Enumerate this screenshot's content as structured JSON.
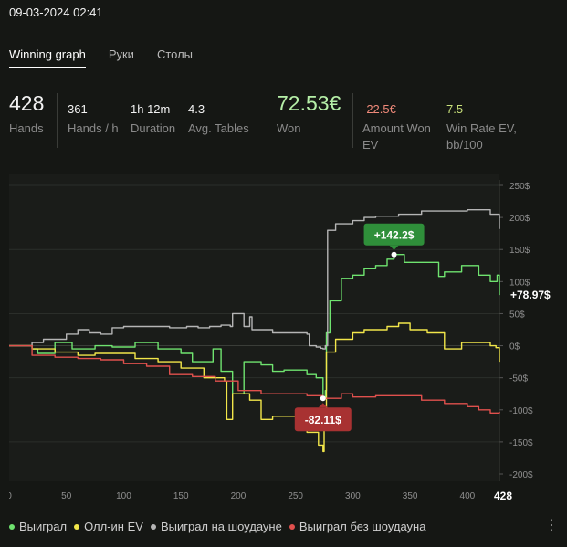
{
  "title": "09-03-2024 02:41",
  "tabs": [
    {
      "label": "Winning graph",
      "active": true
    },
    {
      "label": "Руки",
      "active": false
    },
    {
      "label": "Столы",
      "active": false
    }
  ],
  "stats": {
    "hands": {
      "value": "428",
      "label": "Hands"
    },
    "hands_per_hour": {
      "value": "361",
      "label": "Hands / h"
    },
    "duration": {
      "value": "1h 12m",
      "label": "Duration"
    },
    "avg_tables": {
      "value": "4.3",
      "label": "Avg. Tables"
    },
    "won": {
      "value": "72.53€",
      "label": "Won"
    },
    "amount_won_ev": {
      "value": "-22.5€",
      "label_line1": "Amount Won",
      "label_line2": "EV"
    },
    "win_rate_ev": {
      "value": "7.5",
      "label_line1": "Win Rate EV,",
      "label_line2": "bb/100"
    }
  },
  "colors": {
    "green": "#6fe36f",
    "yellow": "#f2e64a",
    "gray": "#b5b5b5",
    "red": "#e0504d",
    "won_value": "#b6f0a8",
    "negative": "#f08a7a",
    "positive_stat": "#c8e07a"
  },
  "chart_data": {
    "type": "line",
    "xlim": [
      0,
      428
    ],
    "ylim": [
      -200,
      250
    ],
    "x_ticks": [
      "0",
      "50",
      "100",
      "150",
      "200",
      "250",
      "300",
      "350",
      "400"
    ],
    "x_end_label": "428",
    "y_ticks": [
      "250$",
      "200$",
      "150$",
      "100$",
      "50$",
      "0$",
      "-50$",
      "-100$",
      "-150$",
      "-200$"
    ],
    "end_value_label": "+78.97$",
    "max_annotation": {
      "label": "+142.2$",
      "x": 336,
      "y": 142.2
    },
    "min_annotation": {
      "label": "-82.11$",
      "x": 274,
      "y": -82.11
    },
    "series": [
      {
        "name": "Выиграл",
        "color": "#6fe36f",
        "points": [
          [
            0,
            0
          ],
          [
            20,
            -5
          ],
          [
            25,
            -12
          ],
          [
            40,
            5
          ],
          [
            55,
            -5
          ],
          [
            75,
            0
          ],
          [
            90,
            -2
          ],
          [
            110,
            5
          ],
          [
            130,
            -5
          ],
          [
            150,
            -12
          ],
          [
            160,
            -25
          ],
          [
            178,
            -5
          ],
          [
            185,
            -40
          ],
          [
            190,
            -40
          ],
          [
            195,
            -75
          ],
          [
            205,
            -25
          ],
          [
            220,
            -30
          ],
          [
            230,
            -40
          ],
          [
            240,
            -38
          ],
          [
            260,
            -45
          ],
          [
            268,
            -50
          ],
          [
            274,
            -82.11
          ],
          [
            276,
            -70
          ],
          [
            277,
            20
          ],
          [
            280,
            70
          ],
          [
            290,
            105
          ],
          [
            300,
            110
          ],
          [
            310,
            120
          ],
          [
            320,
            125
          ],
          [
            330,
            135
          ],
          [
            336,
            142.2
          ],
          [
            345,
            130
          ],
          [
            360,
            130
          ],
          [
            375,
            108
          ],
          [
            380,
            115
          ],
          [
            395,
            125
          ],
          [
            410,
            110
          ],
          [
            420,
            100
          ],
          [
            426,
            110
          ],
          [
            428,
            78.97
          ]
        ]
      },
      {
        "name": "Олл-ин EV",
        "color": "#f2e64a",
        "points": [
          [
            0,
            0
          ],
          [
            20,
            -5
          ],
          [
            40,
            -10
          ],
          [
            60,
            -15
          ],
          [
            75,
            -12
          ],
          [
            90,
            -12
          ],
          [
            110,
            -20
          ],
          [
            130,
            -25
          ],
          [
            150,
            -35
          ],
          [
            170,
            -50
          ],
          [
            188,
            -55
          ],
          [
            190,
            -115
          ],
          [
            195,
            -75
          ],
          [
            210,
            -85
          ],
          [
            220,
            -115
          ],
          [
            230,
            -110
          ],
          [
            250,
            -125
          ],
          [
            260,
            -135
          ],
          [
            270,
            -155
          ],
          [
            274,
            -165
          ],
          [
            275,
            -120
          ],
          [
            277,
            -10
          ],
          [
            285,
            10
          ],
          [
            300,
            20
          ],
          [
            310,
            25
          ],
          [
            320,
            25
          ],
          [
            330,
            30
          ],
          [
            340,
            35
          ],
          [
            350,
            25
          ],
          [
            365,
            20
          ],
          [
            380,
            -5
          ],
          [
            395,
            5
          ],
          [
            410,
            5
          ],
          [
            420,
            0
          ],
          [
            425,
            -3
          ],
          [
            428,
            -25
          ]
        ]
      },
      {
        "name": "Выиграл на шоудауне",
        "color": "#b5b5b5",
        "points": [
          [
            0,
            0
          ],
          [
            20,
            5
          ],
          [
            30,
            10
          ],
          [
            50,
            18
          ],
          [
            60,
            25
          ],
          [
            70,
            20
          ],
          [
            80,
            18
          ],
          [
            90,
            28
          ],
          [
            100,
            30
          ],
          [
            120,
            30
          ],
          [
            140,
            28
          ],
          [
            155,
            30
          ],
          [
            165,
            28
          ],
          [
            175,
            30
          ],
          [
            185,
            32
          ],
          [
            193,
            30
          ],
          [
            195,
            50
          ],
          [
            200,
            50
          ],
          [
            205,
            30
          ],
          [
            210,
            45
          ],
          [
            212,
            25
          ],
          [
            230,
            20
          ],
          [
            250,
            20
          ],
          [
            260,
            18
          ],
          [
            262,
            0
          ],
          [
            268,
            -2
          ],
          [
            272,
            -4
          ],
          [
            274,
            -5
          ],
          [
            276,
            0
          ],
          [
            278,
            180
          ],
          [
            285,
            190
          ],
          [
            300,
            195
          ],
          [
            310,
            200
          ],
          [
            320,
            202
          ],
          [
            340,
            205
          ],
          [
            360,
            210
          ],
          [
            380,
            210
          ],
          [
            400,
            212
          ],
          [
            420,
            205
          ],
          [
            428,
            182
          ]
        ]
      },
      {
        "name": "Выиграл без шоудауна",
        "color": "#e0504d",
        "points": [
          [
            0,
            0
          ],
          [
            20,
            -15
          ],
          [
            40,
            -18
          ],
          [
            60,
            -20
          ],
          [
            80,
            -22
          ],
          [
            100,
            -28
          ],
          [
            120,
            -32
          ],
          [
            140,
            -45
          ],
          [
            160,
            -48
          ],
          [
            180,
            -55
          ],
          [
            200,
            -70
          ],
          [
            220,
            -75
          ],
          [
            240,
            -75
          ],
          [
            260,
            -78
          ],
          [
            274,
            -82.11
          ],
          [
            290,
            -75
          ],
          [
            300,
            -80
          ],
          [
            320,
            -78
          ],
          [
            340,
            -78
          ],
          [
            360,
            -85
          ],
          [
            380,
            -90
          ],
          [
            400,
            -95
          ],
          [
            410,
            -100
          ],
          [
            420,
            -105
          ],
          [
            428,
            -103
          ]
        ]
      }
    ]
  },
  "legend": [
    {
      "label": "Выиграл",
      "color": "#6fe36f"
    },
    {
      "label": "Олл-ин EV",
      "color": "#f2e64a"
    },
    {
      "label": "Выиграл на шоудауне",
      "color": "#b5b5b5"
    },
    {
      "label": "Выиграл без шоудауна",
      "color": "#e0504d"
    }
  ],
  "more_icon": "kebab-menu-icon"
}
